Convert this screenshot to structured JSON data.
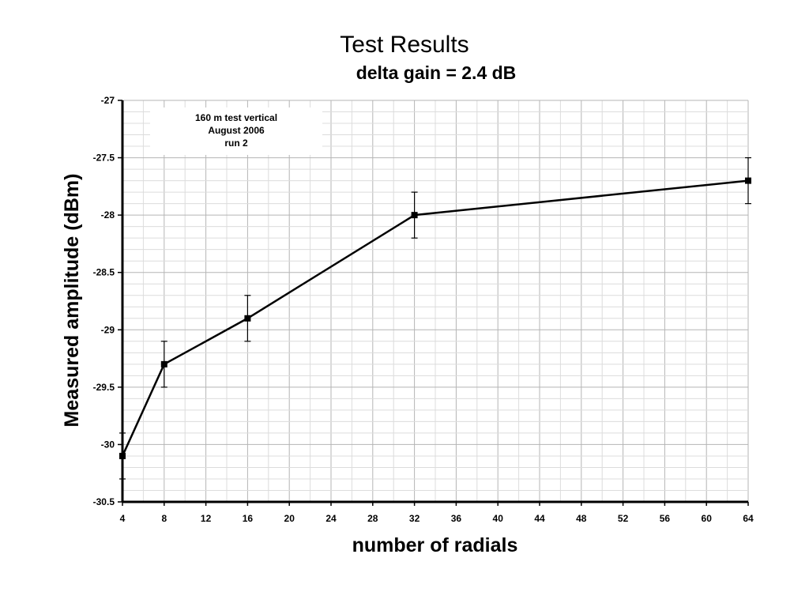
{
  "chart_data": {
    "type": "line",
    "title": "Test Results",
    "subtitle": "delta gain = 2.4 dB",
    "xlabel": "number of radials",
    "ylabel": "Measured amplitude (dBm)",
    "xlim": [
      4,
      64
    ],
    "ylim": [
      -30.5,
      -27
    ],
    "x_ticks": [
      4,
      8,
      12,
      16,
      20,
      24,
      28,
      32,
      36,
      40,
      44,
      48,
      52,
      56,
      60,
      64
    ],
    "x_tick_labels": [
      "4",
      "8",
      "12",
      "16",
      "20",
      "24",
      "28",
      "32",
      "36",
      "40",
      "44",
      "48",
      "52",
      "56",
      "60",
      "64"
    ],
    "y_ticks": [
      -30.5,
      -30,
      -29.5,
      -29,
      -28.5,
      -28,
      -27.5,
      -27
    ],
    "y_tick_labels": [
      "-30.5",
      "-30",
      "-29.5",
      "-29",
      "-28.5",
      "-28",
      "-27.5",
      "-27"
    ],
    "grid": true,
    "series": [
      {
        "x": [
          4,
          8,
          16,
          32,
          64
        ],
        "y": [
          -30.1,
          -29.3,
          -28.9,
          -28.0,
          -27.7
        ],
        "error": [
          0.2,
          0.2,
          0.2,
          0.2,
          0.2
        ],
        "marker": "square",
        "color": "#000000"
      }
    ],
    "annotation": {
      "lines": [
        "160 m test vertical",
        "August 2006",
        "run 2"
      ],
      "placement": "top-left"
    }
  }
}
